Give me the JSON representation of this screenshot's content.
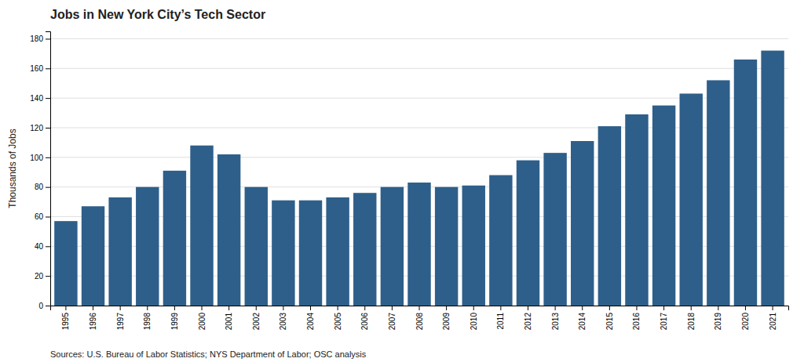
{
  "chart_data": {
    "type": "bar",
    "title": "Jobs in New York City’s Tech Sector",
    "ylabel": "Thousands of Jobs",
    "source": "Sources: U.S. Bureau of Labor Statistics; NYS Department of Labor; OSC analysis",
    "categories": [
      1995,
      1996,
      1997,
      1998,
      1999,
      2000,
      2001,
      2002,
      2003,
      2004,
      2005,
      2006,
      2007,
      2008,
      2009,
      2010,
      2011,
      2012,
      2013,
      2014,
      2015,
      2016,
      2017,
      2018,
      2019,
      2020,
      2021
    ],
    "values": [
      57,
      67,
      73,
      80,
      91,
      108,
      102,
      80,
      71,
      71,
      73,
      76,
      80,
      83,
      80,
      81,
      88,
      98,
      103,
      111,
      121,
      129,
      135,
      143,
      152,
      166,
      172
    ],
    "color": "#2e5f8a",
    "ylim": [
      0,
      185
    ],
    "yticks": [
      0,
      20,
      40,
      60,
      80,
      100,
      120,
      140,
      160,
      180
    ],
    "grid": true
  }
}
